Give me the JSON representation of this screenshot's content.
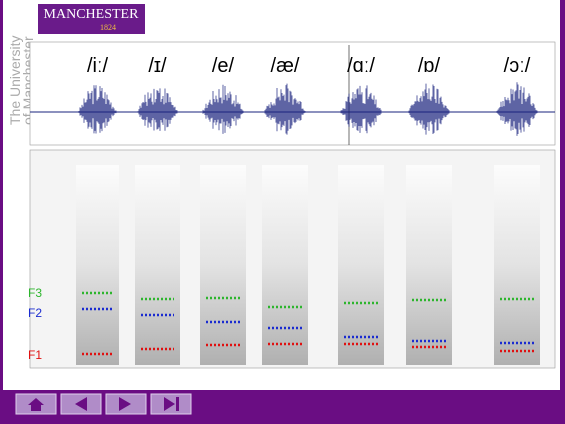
{
  "logo": {
    "name": "MANCHESTER",
    "year": "1824"
  },
  "sidebar": [
    "The University",
    "of Manchester"
  ],
  "vowels": [
    "/iː/",
    "/ɪ/",
    "/e/",
    "/æ/",
    "/ɑː/",
    "/ɒ/",
    "/ɔː/"
  ],
  "formants": [
    "F3",
    "F2",
    "F1"
  ]
}
